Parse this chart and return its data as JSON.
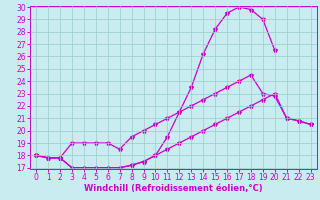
{
  "xlabel": "Windchill (Refroidissement éolien,°C)",
  "bg_color": "#c8ecf0",
  "line_color": "#cc00cc",
  "grid_color": "#99cccc",
  "ylim": [
    17,
    30
  ],
  "xlim": [
    -0.5,
    23.5
  ],
  "yticks": [
    17,
    18,
    19,
    20,
    21,
    22,
    23,
    24,
    25,
    26,
    27,
    28,
    29,
    30
  ],
  "xticks": [
    0,
    1,
    2,
    3,
    4,
    5,
    6,
    7,
    8,
    9,
    10,
    11,
    12,
    13,
    14,
    15,
    16,
    17,
    18,
    19,
    20,
    21,
    22,
    23
  ],
  "line1_x": [
    0,
    1,
    2,
    3,
    4,
    5,
    6,
    7,
    8,
    9,
    10,
    11,
    12,
    13,
    14,
    15,
    16,
    17,
    18,
    19,
    20
  ],
  "line1_y": [
    18.0,
    17.8,
    17.8,
    17.0,
    17.0,
    17.0,
    17.0,
    17.0,
    17.2,
    17.5,
    18.0,
    19.5,
    21.5,
    23.5,
    26.2,
    28.2,
    29.5,
    30.0,
    29.8,
    29.0,
    26.5
  ],
  "line2_x": [
    0,
    1,
    2,
    3,
    4,
    5,
    6,
    7,
    8,
    9,
    10,
    11,
    12,
    13,
    14,
    15,
    16,
    17,
    18,
    19,
    20,
    21,
    22,
    23
  ],
  "line2_y": [
    18.0,
    17.8,
    17.8,
    19.0,
    19.0,
    19.0,
    19.0,
    18.5,
    19.5,
    20.0,
    20.5,
    21.0,
    21.5,
    22.0,
    22.5,
    23.0,
    23.5,
    24.0,
    24.5,
    23.0,
    22.8,
    21.0,
    20.8,
    20.5
  ],
  "line3_x": [
    0,
    1,
    2,
    3,
    4,
    5,
    6,
    7,
    8,
    9,
    10,
    11,
    12,
    13,
    14,
    15,
    16,
    17,
    18,
    19,
    20,
    21,
    22,
    23
  ],
  "line3_y": [
    18.0,
    17.8,
    17.8,
    17.0,
    17.0,
    17.0,
    17.0,
    17.0,
    17.2,
    17.5,
    18.0,
    18.5,
    19.0,
    19.5,
    20.0,
    20.5,
    21.0,
    21.5,
    22.0,
    22.5,
    23.0,
    21.0,
    20.8,
    20.5
  ],
  "marker": "*",
  "markersize": 3,
  "linewidth": 0.9,
  "xlabel_fontsize": 6,
  "tick_fontsize": 5.5
}
